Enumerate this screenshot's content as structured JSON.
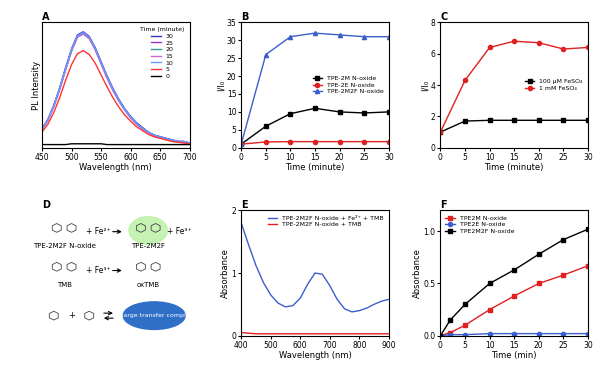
{
  "chart_data": [
    {
      "type": "line",
      "title": "A",
      "x_label": "Wavelength (nm)",
      "y_label": "PL Intensity",
      "legend_title": "Time (minute)",
      "legend": "upper right",
      "tick_labels": "x",
      "grid": false,
      "x": [
        450,
        460,
        470,
        480,
        490,
        500,
        510,
        520,
        530,
        540,
        550,
        560,
        570,
        580,
        590,
        600,
        610,
        620,
        630,
        640,
        650,
        660,
        670,
        680,
        690,
        700
      ],
      "xlim": [
        450,
        700
      ],
      "xticks": [
        450,
        500,
        550,
        600,
        650,
        700
      ],
      "ylim": [
        0,
        80
      ],
      "series": [
        {
          "name": "30",
          "color": "#3333cc",
          "values": [
            12,
            18,
            27,
            38,
            51,
            63,
            72,
            74,
            71,
            64,
            55,
            46,
            38,
            31,
            25,
            20,
            16,
            13,
            10,
            8,
            7,
            6,
            5,
            4,
            4,
            3
          ]
        },
        {
          "name": "25",
          "color": "#9933cc",
          "values": [
            12,
            18,
            27,
            38,
            51,
            62,
            71,
            73.5,
            70.5,
            63.5,
            54.5,
            45.5,
            37.5,
            30.5,
            24.5,
            19.5,
            15.5,
            12.5,
            10,
            8,
            7,
            6,
            5,
            4,
            4,
            3
          ]
        },
        {
          "name": "20",
          "color": "#339999",
          "values": [
            11.5,
            17.5,
            26.5,
            37.5,
            50,
            62,
            71,
            73,
            70,
            63,
            54,
            45,
            37,
            30,
            24.5,
            19.5,
            15.5,
            12.5,
            10,
            8,
            6.5,
            5.5,
            5,
            4,
            3.5,
            3
          ]
        },
        {
          "name": "15",
          "color": "#cc66cc",
          "values": [
            11.5,
            17.5,
            26,
            37,
            49.5,
            61.5,
            70.5,
            72.5,
            69.5,
            62.5,
            53.5,
            44.5,
            36.5,
            30,
            24,
            19,
            15,
            12,
            9.5,
            7.5,
            6.5,
            5.5,
            4.5,
            4,
            3.5,
            3
          ]
        },
        {
          "name": "10",
          "color": "#6699ff",
          "values": [
            12,
            18,
            27,
            38,
            50.5,
            62.5,
            71.5,
            73.5,
            70.5,
            63.5,
            54.5,
            45.5,
            37.5,
            30.5,
            24.5,
            19.5,
            15.5,
            12.5,
            10,
            8,
            7,
            6,
            5,
            4,
            4,
            3
          ]
        },
        {
          "name": "5",
          "color": "#ff3333",
          "values": [
            10,
            15,
            22.5,
            32,
            43,
            53,
            60,
            62,
            59.5,
            54,
            46.5,
            39,
            32,
            26,
            21,
            17,
            13.5,
            11,
            8.5,
            7,
            6,
            5,
            4,
            3.5,
            3,
            2.5
          ]
        },
        {
          "name": "0",
          "color": "#000000",
          "values": [
            2,
            2,
            2,
            2,
            2,
            2.5,
            2.5,
            2.5,
            2.5,
            2.5,
            2.5,
            2,
            2,
            2,
            2,
            2,
            2,
            2,
            2,
            2,
            2,
            2,
            2,
            2,
            2,
            2
          ]
        }
      ]
    },
    {
      "type": "line",
      "title": "B",
      "x_label": "Time (minute)",
      "y_label": "I/I₀",
      "legend": "center right",
      "grid": false,
      "x": [
        0,
        5,
        10,
        15,
        20,
        25,
        30
      ],
      "xlim": [
        0,
        30
      ],
      "xticks": [
        0,
        5,
        10,
        15,
        20,
        25,
        30
      ],
      "ylim": [
        0,
        35
      ],
      "yticks": [
        0,
        5,
        10,
        15,
        20,
        25,
        30,
        35
      ],
      "series": [
        {
          "name": "TPE-2M N-oxide",
          "color": "#000000",
          "marker": "square",
          "values": [
            1,
            6,
            9.5,
            11,
            10,
            9.7,
            10
          ]
        },
        {
          "name": "TPE-2E N-oxide",
          "color": "#e02020",
          "marker": "circle",
          "values": [
            1,
            1.6,
            1.7,
            1.7,
            1.7,
            1.7,
            1.7
          ]
        },
        {
          "name": "TPE-2M2F N-oxide",
          "color": "#3a5fcd",
          "marker": "triangle",
          "values": [
            1,
            26,
            31,
            32,
            31.5,
            31,
            31
          ]
        }
      ]
    },
    {
      "type": "line",
      "title": "C",
      "x_label": "Time (minute)",
      "y_label": "I/I₀",
      "legend": "center right",
      "grid": false,
      "x": [
        0,
        5,
        10,
        15,
        20,
        25,
        30
      ],
      "xlim": [
        0,
        30
      ],
      "xticks": [
        0,
        5,
        10,
        15,
        20,
        25,
        30
      ],
      "ylim": [
        0,
        8
      ],
      "yticks": [
        0,
        2,
        4,
        6,
        8
      ],
      "series": [
        {
          "name": "100 μM FeSO₄",
          "color": "#000000",
          "marker": "square",
          "values": [
            1,
            1.7,
            1.75,
            1.75,
            1.75,
            1.75,
            1.75
          ]
        },
        {
          "name": "1 mM FeSO₄",
          "color": "#e02020",
          "marker": "circle",
          "values": [
            1,
            4.3,
            6.4,
            6.8,
            6.7,
            6.3,
            6.4
          ]
        }
      ]
    },
    {
      "type": "line",
      "title": "E",
      "x_label": "Wavelength (nm)",
      "y_label": "Absorbance",
      "legend": "upper right",
      "grid": false,
      "x": [
        400,
        425,
        450,
        475,
        500,
        525,
        550,
        575,
        600,
        625,
        650,
        675,
        700,
        725,
        750,
        775,
        800,
        825,
        850,
        875,
        900
      ],
      "xlim": [
        400,
        900
      ],
      "xticks": [
        400,
        500,
        600,
        700,
        800,
        900
      ],
      "ylim": [
        0,
        2
      ],
      "yticks": [
        0,
        1,
        2
      ],
      "series": [
        {
          "name": "TPE-2M2F N-oxide + Fe²⁺ + TMB",
          "color": "#3a5fcd",
          "values": [
            1.8,
            1.45,
            1.12,
            0.85,
            0.65,
            0.52,
            0.46,
            0.48,
            0.6,
            0.82,
            1.0,
            0.98,
            0.8,
            0.58,
            0.43,
            0.38,
            0.4,
            0.44,
            0.5,
            0.55,
            0.58
          ]
        },
        {
          "name": "TPE-2M2F N-oxide + TMB",
          "color": "#e02020",
          "values": [
            0.05,
            0.04,
            0.03,
            0.03,
            0.03,
            0.03,
            0.03,
            0.03,
            0.03,
            0.03,
            0.03,
            0.03,
            0.03,
            0.03,
            0.03,
            0.03,
            0.03,
            0.03,
            0.03,
            0.03,
            0.03
          ]
        }
      ]
    },
    {
      "type": "line",
      "title": "F",
      "x_label": "Time (min)",
      "y_label": "Absorbance",
      "legend": "upper left",
      "grid": false,
      "x": [
        0,
        2,
        5,
        10,
        15,
        20,
        25,
        30
      ],
      "xlim": [
        0,
        30
      ],
      "xticks": [
        0,
        5,
        10,
        15,
        20,
        25,
        30
      ],
      "ylim": [
        0,
        1.2
      ],
      "yticks": [
        {
          "value": 0,
          "label": "0.0"
        },
        {
          "value": 0.5,
          "label": "0.5"
        },
        {
          "value": 1.0,
          "label": "1.0"
        }
      ],
      "series": [
        {
          "name": "TPE2M N-oxide",
          "color": "#e02020",
          "marker": "square",
          "values": [
            0,
            0.03,
            0.1,
            0.25,
            0.38,
            0.5,
            0.58,
            0.67
          ]
        },
        {
          "name": "TPE2E N-oxide",
          "color": "#3a5fcd",
          "marker": "circle",
          "values": [
            0,
            0.01,
            0.01,
            0.02,
            0.02,
            0.02,
            0.02,
            0.02
          ]
        },
        {
          "name": "TPE2M2F N-oxide",
          "color": "#000000",
          "marker": "square",
          "values": [
            0,
            0.15,
            0.3,
            0.5,
            0.63,
            0.78,
            0.92,
            1.02
          ]
        }
      ]
    }
  ],
  "diagram": {
    "label": "D",
    "rows": [
      [
        "TPE-2M2F N-oxide",
        "+ Fe²⁺",
        "TPE-2M2F",
        "+ Fe³⁺"
      ],
      [
        "TMB",
        "+ Fe³⁺",
        "oxTMB"
      ],
      [
        "+",
        "Charge transfer complex"
      ]
    ]
  }
}
